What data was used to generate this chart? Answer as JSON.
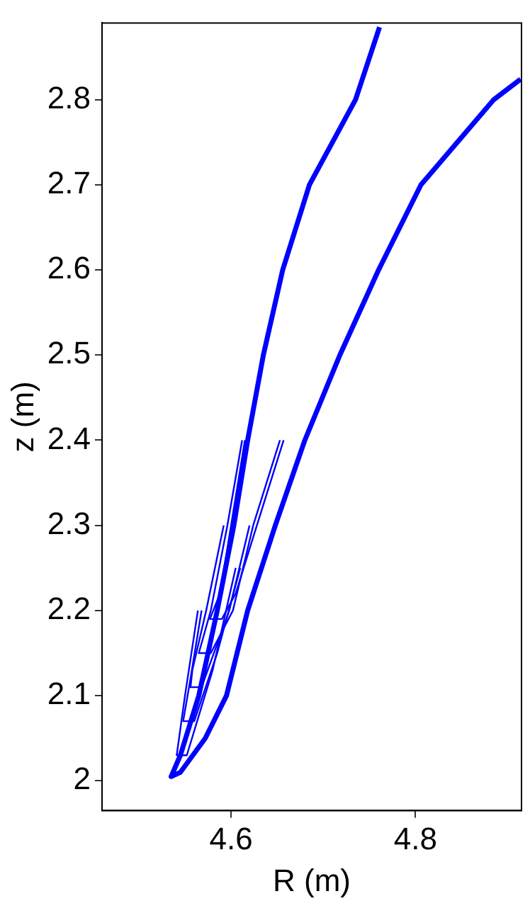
{
  "chart_data": {
    "type": "line",
    "xlabel": "R (m)",
    "ylabel": "z (m)",
    "xlim": [
      4.46,
      4.915
    ],
    "ylim": [
      1.965,
      2.89
    ],
    "xticks": [
      4.6,
      4.8
    ],
    "yticks": [
      2,
      2.1,
      2.2,
      2.3,
      2.4,
      2.5,
      2.6,
      2.7,
      2.8
    ],
    "grid": false,
    "legend": false,
    "marker": "none",
    "line_style": "solid",
    "series": [
      {
        "color": "#0000ff",
        "x": [
          4.761,
          4.735,
          4.685,
          4.656,
          4.635,
          4.618,
          4.603,
          4.585,
          4.565,
          4.545,
          4.535,
          4.545,
          4.572,
          4.595,
          4.618,
          4.648,
          4.68,
          4.718,
          4.76,
          4.806,
          4.885,
          4.914
        ],
        "values": [
          2.885,
          2.8,
          2.7,
          2.6,
          2.5,
          2.4,
          2.3,
          2.2,
          2.1,
          2.03,
          2.005,
          2.01,
          2.05,
          2.1,
          2.2,
          2.3,
          2.4,
          2.5,
          2.6,
          2.7,
          2.8,
          2.824
        ]
      },
      {
        "color": "#0000ff",
        "x": [
          4.615,
          4.6,
          4.588,
          4.577,
          4.59,
          4.605,
          4.628,
          4.657
        ],
        "values": [
          2.4,
          2.3,
          2.22,
          2.19,
          2.19,
          2.22,
          2.3,
          2.4
        ]
      },
      {
        "color": "#0000ff",
        "x": [
          4.612,
          4.596,
          4.578,
          4.565,
          4.578,
          4.602,
          4.624,
          4.653
        ],
        "values": [
          2.4,
          2.3,
          2.2,
          2.15,
          2.15,
          2.2,
          2.3,
          2.4
        ]
      },
      {
        "color": "#0000ff",
        "x": [
          4.592,
          4.573,
          4.558,
          4.556,
          4.568,
          4.598,
          4.62
        ],
        "values": [
          2.3,
          2.2,
          2.13,
          2.11,
          2.11,
          2.2,
          2.3
        ]
      },
      {
        "color": "#0000ff",
        "x": [
          4.568,
          4.556,
          4.548,
          4.56,
          4.585,
          4.61
        ],
        "values": [
          2.2,
          2.12,
          2.07,
          2.07,
          2.15,
          2.25
        ]
      },
      {
        "color": "#0000ff",
        "x": [
          4.564,
          4.55,
          4.541,
          4.552,
          4.58,
          4.605
        ],
        "values": [
          2.2,
          2.1,
          2.03,
          2.03,
          2.13,
          2.25
        ]
      }
    ]
  }
}
